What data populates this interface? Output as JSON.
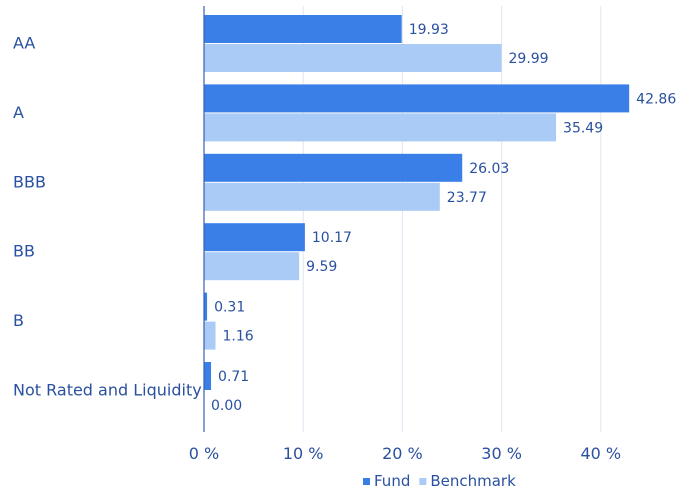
{
  "chart_data": {
    "type": "bar",
    "orientation": "horizontal",
    "title": "",
    "xlabel": "",
    "ylabel": "",
    "categories": [
      "AA",
      "A",
      "BBB",
      "BB",
      "B",
      "Not Rated and Liquidity"
    ],
    "series": [
      {
        "name": "Fund",
        "color": "#3a7fe8",
        "values": [
          19.93,
          42.86,
          26.03,
          10.17,
          0.31,
          0.71
        ],
        "labels": [
          "19.93",
          "42.86",
          "26.03",
          "10.17",
          "0.31",
          "0.71"
        ]
      },
      {
        "name": "Benchmark",
        "color": "#a9cbf5",
        "values": [
          29.99,
          35.49,
          23.77,
          9.59,
          1.16,
          0.0
        ],
        "labels": [
          "29.99",
          "35.49",
          "23.77",
          "9.59",
          "1.16",
          "0.00"
        ]
      }
    ],
    "xlim": [
      0,
      45
    ],
    "xticks": [
      0,
      10,
      20,
      30,
      40
    ],
    "xtick_labels": [
      "0 %",
      "10 %",
      "20 %",
      "30 %",
      "40 %"
    ],
    "grid": true,
    "legend_position": "bottom-right"
  }
}
